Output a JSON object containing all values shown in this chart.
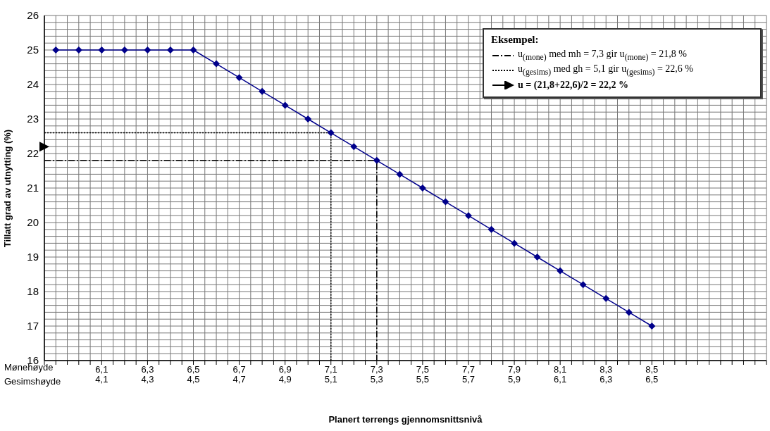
{
  "chart_data": {
    "type": "line",
    "xlabel": "Planert terrengs gjennomsnittsnivå",
    "ylabel": "Tillatt grad av utnytting (%)",
    "legend_title": "Eksempel:",
    "legend": "top right",
    "grid": true,
    "annotations": [
      "Mønehøyde",
      "Gesimshøyde"
    ],
    "xlim": [
      5.85,
      9.0
    ],
    "xticks": [
      {
        "value": 5.85,
        "label": null
      },
      {
        "value": 5.9,
        "label": null
      },
      {
        "value": 5.95,
        "label": null
      },
      {
        "value": 6,
        "label": null
      },
      {
        "value": 6.05,
        "label": null
      },
      {
        "value": 6.1,
        "label": "6,1"
      },
      {
        "value": 6.15,
        "label": null
      },
      {
        "value": 6.2,
        "label": null
      },
      {
        "value": 6.25,
        "label": null
      },
      {
        "value": 6.3,
        "label": "6,3"
      },
      {
        "value": 6.35,
        "label": null
      },
      {
        "value": 6.4,
        "label": null
      },
      {
        "value": 6.45,
        "label": null
      },
      {
        "value": 6.5,
        "label": "6,5"
      },
      {
        "value": 6.55,
        "label": null
      },
      {
        "value": 6.6,
        "label": null
      },
      {
        "value": 6.65,
        "label": null
      },
      {
        "value": 6.7,
        "label": "6,7"
      },
      {
        "value": 6.75,
        "label": null
      },
      {
        "value": 6.8,
        "label": null
      },
      {
        "value": 6.85,
        "label": null
      },
      {
        "value": 6.9,
        "label": "6,9"
      },
      {
        "value": 6.95,
        "label": null
      },
      {
        "value": 7,
        "label": null
      },
      {
        "value": 7.05,
        "label": null
      },
      {
        "value": 7.1,
        "label": "7,1"
      },
      {
        "value": 7.15,
        "label": null
      },
      {
        "value": 7.2,
        "label": null
      },
      {
        "value": 7.25,
        "label": null
      },
      {
        "value": 7.3,
        "label": "7,3"
      },
      {
        "value": 7.35,
        "label": null
      },
      {
        "value": 7.4,
        "label": null
      },
      {
        "value": 7.45,
        "label": null
      },
      {
        "value": 7.5,
        "label": "7,5"
      },
      {
        "value": 7.55,
        "label": null
      },
      {
        "value": 7.6,
        "label": null
      },
      {
        "value": 7.65,
        "label": null
      },
      {
        "value": 7.7,
        "label": "7,7"
      },
      {
        "value": 7.75,
        "label": null
      },
      {
        "value": 7.8,
        "label": null
      },
      {
        "value": 7.85,
        "label": null
      },
      {
        "value": 7.9,
        "label": "7,9"
      },
      {
        "value": 7.95,
        "label": null
      },
      {
        "value": 8,
        "label": null
      },
      {
        "value": 8.05,
        "label": null
      },
      {
        "value": 8.1,
        "label": "8,1"
      },
      {
        "value": 8.15,
        "label": null
      },
      {
        "value": 8.2,
        "label": null
      },
      {
        "value": 8.25,
        "label": null
      },
      {
        "value": 8.3,
        "label": "8,3"
      },
      {
        "value": 8.35,
        "label": null
      },
      {
        "value": 8.4,
        "label": null
      },
      {
        "value": 8.45,
        "label": null
      },
      {
        "value": 8.5,
        "label": "8,5"
      },
      {
        "value": 8.55,
        "label": null
      },
      {
        "value": 8.6,
        "label": null
      },
      {
        "value": 8.65,
        "label": null
      },
      {
        "value": 8.7,
        "label": null
      },
      {
        "value": 8.75,
        "label": null
      },
      {
        "value": 8.8,
        "label": null
      },
      {
        "value": 8.85,
        "label": null
      },
      {
        "value": 8.9,
        "label": null
      },
      {
        "value": 8.95,
        "label": null
      },
      {
        "value": 9,
        "label": null
      }
    ],
    "x2lim": [
      3.85,
      7.0
    ],
    "x2ticks": [
      {
        "value": 4.1,
        "label": "4,1"
      },
      {
        "value": 4.3,
        "label": "4,3"
      },
      {
        "value": 4.5,
        "label": "4,5"
      },
      {
        "value": 4.7,
        "label": "4,7"
      },
      {
        "value": 4.9,
        "label": "4,9"
      },
      {
        "value": 5.1,
        "label": "5,1"
      },
      {
        "value": 5.3,
        "label": "5,3"
      },
      {
        "value": 5.5,
        "label": "5,5"
      },
      {
        "value": 5.7,
        "label": "5,7"
      },
      {
        "value": 5.9,
        "label": "5,9"
      },
      {
        "value": 6.1,
        "label": "6,1"
      },
      {
        "value": 6.3,
        "label": "6,3"
      },
      {
        "value": 6.5,
        "label": "6,5"
      }
    ],
    "ylim": [
      16,
      26
    ],
    "yticks": [
      16,
      {
        "value": 16.2,
        "label": null
      },
      {
        "value": 16.4,
        "label": null
      },
      {
        "value": 16.6,
        "label": null
      },
      {
        "value": 16.8,
        "label": null
      },
      17,
      {
        "value": 17.2,
        "label": null
      },
      {
        "value": 17.4,
        "label": null
      },
      {
        "value": 17.6,
        "label": null
      },
      {
        "value": 17.8,
        "label": null
      },
      18,
      {
        "value": 18.2,
        "label": null
      },
      {
        "value": 18.4,
        "label": null
      },
      {
        "value": 18.6,
        "label": null
      },
      {
        "value": 18.8,
        "label": null
      },
      19,
      {
        "value": 19.2,
        "label": null
      },
      {
        "value": 19.4,
        "label": null
      },
      {
        "value": 19.6,
        "label": null
      },
      {
        "value": 19.8,
        "label": null
      },
      20,
      {
        "value": 20.2,
        "label": null
      },
      {
        "value": 20.4,
        "label": null
      },
      {
        "value": 20.6,
        "label": null
      },
      {
        "value": 20.8,
        "label": null
      },
      21,
      {
        "value": 21.2,
        "label": null
      },
      {
        "value": 21.4,
        "label": null
      },
      {
        "value": 21.6,
        "label": null
      },
      {
        "value": 21.8,
        "label": null
      },
      22,
      {
        "value": 22.2,
        "label": null
      },
      {
        "value": 22.4,
        "label": null
      },
      {
        "value": 22.6,
        "label": null
      },
      {
        "value": 22.8,
        "label": null
      },
      23,
      {
        "value": 23.2,
        "label": null
      },
      {
        "value": 23.4,
        "label": null
      },
      {
        "value": 23.6,
        "label": null
      },
      {
        "value": 23.8,
        "label": null
      },
      24,
      {
        "value": 24.2,
        "label": null
      },
      {
        "value": 24.4,
        "label": null
      },
      {
        "value": 24.6,
        "label": null
      },
      {
        "value": 24.8,
        "label": null
      },
      25,
      {
        "value": 25.2,
        "label": null
      },
      {
        "value": 25.4,
        "label": null
      },
      {
        "value": 25.6,
        "label": null
      },
      {
        "value": 25.8,
        "label": null
      },
      26
    ],
    "series": [
      {
        "color": "#00008b",
        "marker": "diamond",
        "line_style": "solid",
        "x": [
          5.9,
          6.0,
          6.1,
          6.2,
          6.3,
          6.4,
          6.5,
          6.6,
          6.7,
          6.8,
          6.9,
          7.0,
          7.1,
          7.2,
          7.3,
          7.4,
          7.5,
          7.6,
          7.7,
          7.8,
          7.9,
          8.0,
          8.1,
          8.2,
          8.3,
          8.4,
          8.5
        ],
        "values": [
          25,
          25,
          25,
          25,
          25,
          25,
          25,
          24.6,
          24.2,
          23.8,
          23.4,
          23.0,
          22.6,
          22.2,
          21.8,
          21.4,
          21.0,
          20.6,
          20.2,
          19.8,
          19.4,
          19.0,
          18.6,
          18.2,
          17.8,
          17.4,
          17.0
        ]
      },
      {
        "name": "u$_{(mone)}$ med mh = 7,3 gir u$_{(mone)}$ = 21,8 %",
        "color": "#000000",
        "marker": "none",
        "line_style": "dashed",
        "x": [
          5.85,
          7.3,
          7.3
        ],
        "values": [
          21.8,
          21.8,
          16
        ]
      },
      {
        "name": "u$_{(gesims)}$ med gh = 5,1 gir u$_{(gesims)}$ = 22,6 %",
        "color": "#000000",
        "marker": "none",
        "line_style": "dotted",
        "x": [
          5.85,
          7.1,
          7.1
        ],
        "values": [
          22.6,
          22.6,
          16
        ]
      },
      {
        "type": "scatter",
        "name": "u = (21,8+22,6)/2 = 22,2 %",
        "color": "#000000",
        "marker": "triangle",
        "x": [
          5.85
        ],
        "values": [
          22.2
        ]
      }
    ]
  }
}
